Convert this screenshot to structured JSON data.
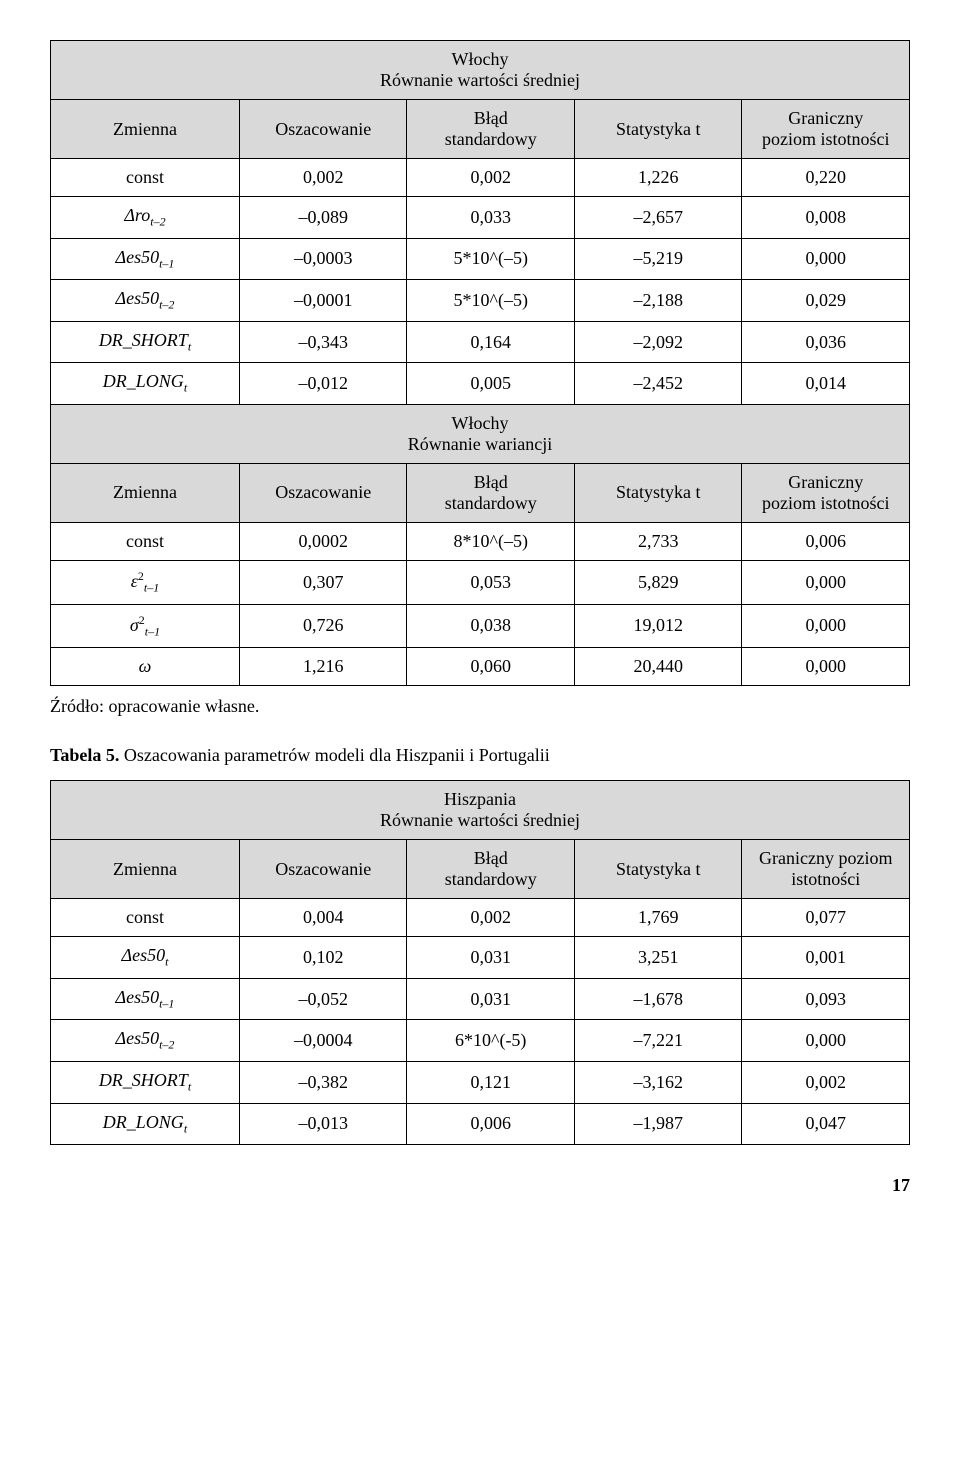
{
  "table1": {
    "section1_title_l1": "Włochy",
    "section1_title_l2": "Równanie wartości średniej",
    "cols": {
      "c1": "Zmienna",
      "c2": "Oszacowanie",
      "c3": "Błąd\nstandardowy",
      "c4": "Statystyka t",
      "c5": "Graniczny\npoziom istotności"
    },
    "rows1": [
      {
        "v": "const",
        "a": "0,002",
        "b": "0,002",
        "c": "1,226",
        "d": "0,220"
      },
      {
        "v": "Δro",
        "sub": "t–2",
        "a": "–0,089",
        "b": "0,033",
        "c": "–2,657",
        "d": "0,008"
      },
      {
        "v": "Δes50",
        "sub": "t–1",
        "a": "–0,0003",
        "b": "5*10^(–5)",
        "c": "–5,219",
        "d": "0,000"
      },
      {
        "v": "Δes50",
        "sub": "t–2",
        "a": "–0,0001",
        "b": "5*10^(–5)",
        "c": "–2,188",
        "d": "0,029"
      },
      {
        "v": "DR_SHORT",
        "sub": "t",
        "a": "–0,343",
        "b": "0,164",
        "c": "–2,092",
        "d": "0,036"
      },
      {
        "v": "DR_LONG",
        "sub": "t",
        "a": "–0,012",
        "b": "0,005",
        "c": "–2,452",
        "d": "0,014"
      }
    ],
    "section2_title_l1": "Włochy",
    "section2_title_l2": "Równanie wariancji",
    "rows2": [
      {
        "v": "const",
        "a": "0,0002",
        "b": "8*10^(–5)",
        "c": "2,733",
        "d": "0,006"
      },
      {
        "v": "ε",
        "sup": "2",
        "sub": "t–1",
        "a": "0,307",
        "b": "0,053",
        "c": "5,829",
        "d": "0,000"
      },
      {
        "v": "σ",
        "sup": "2",
        "sub": "t–1",
        "a": "0,726",
        "b": "0,038",
        "c": "19,012",
        "d": "0,000"
      },
      {
        "v": "ω",
        "a": "1,216",
        "b": "0,060",
        "c": "20,440",
        "d": "0,000"
      }
    ]
  },
  "source": "Źródło: opracowanie własne.",
  "caption": {
    "label": "Tabela 5.",
    "text": " Oszacowania parametrów modeli dla Hiszpanii i Portugalii"
  },
  "table2": {
    "section_title_l1": "Hiszpania",
    "section_title_l2": "Równanie wartości średniej",
    "cols": {
      "c1": "Zmienna",
      "c2": "Oszacowanie",
      "c3": "Błąd\nstandardowy",
      "c4": "Statystyka t",
      "c5": "Graniczny poziom\nistotności"
    },
    "rows": [
      {
        "v": "const",
        "a": "0,004",
        "b": "0,002",
        "c": "1,769",
        "d": "0,077"
      },
      {
        "v": "Δes50",
        "sub": "t",
        "a": "0,102",
        "b": "0,031",
        "c": "3,251",
        "d": "0,001"
      },
      {
        "v": "Δes50",
        "sub": "t–1",
        "a": "–0,052",
        "b": "0,031",
        "c": "–1,678",
        "d": "0,093"
      },
      {
        "v": "Δes50",
        "sub": "t–2",
        "a": "–0,0004",
        "b": "6*10^(-5)",
        "c": "–7,221",
        "d": "0,000"
      },
      {
        "v": "DR_SHORT",
        "sub": "t",
        "a": "–0,382",
        "b": "0,121",
        "c": "–3,162",
        "d": "0,002"
      },
      {
        "v": "DR_LONG",
        "sub": "t",
        "a": "–0,013",
        "b": "0,006",
        "c": "–1,987",
        "d": "0,047"
      }
    ]
  },
  "page": "17"
}
